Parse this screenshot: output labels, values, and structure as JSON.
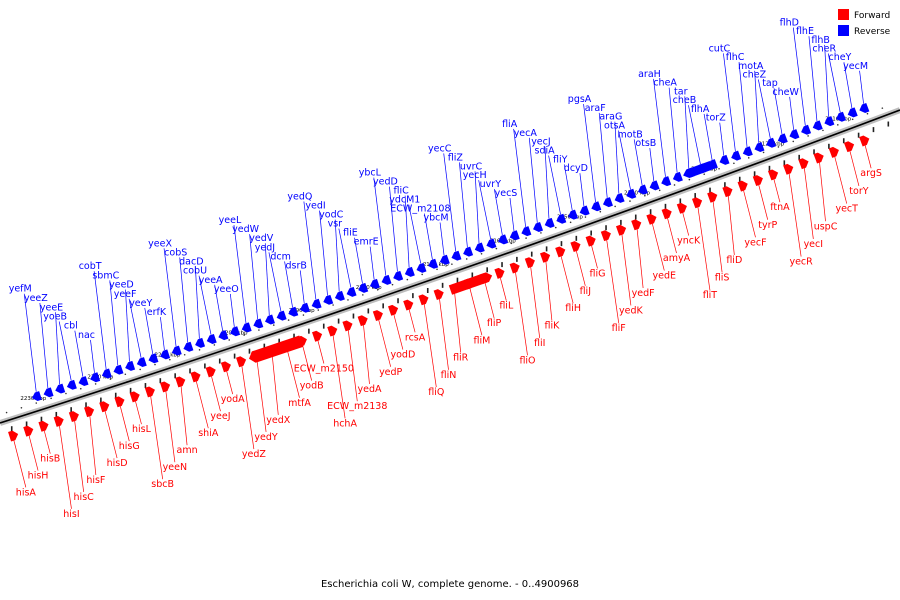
{
  "caption": "Escherichia coli W, complete genome. - 0..4900968",
  "legend": [
    {
      "label": "Forward",
      "color": "#ff0000"
    },
    {
      "label": "Reverse",
      "color": "#0000ff"
    }
  ],
  "colors": {
    "forward": "#ff0000",
    "reverse": "#0000ff",
    "backbone": "#000000"
  },
  "ticks": [
    "2110 kbp",
    "2120 kbp",
    "2130 kbp",
    "2140 kbp",
    "2150 kbp",
    "2160 kbp",
    "2170 kbp",
    "2180 kbp",
    "2190 kbp",
    "2200 kbp",
    "2210 kbp",
    "2220 kbp",
    "2230 kbp"
  ],
  "reverse_genes": [
    "yecM",
    "cheY",
    "cheR",
    "flhB",
    "flhE",
    "flhD",
    "cheW",
    "tap",
    "cheZ",
    "motA",
    "flhC",
    "cutC",
    "torZ",
    "flhA",
    "cheB",
    "tar",
    "cheA",
    "araH",
    "otsB",
    "motB",
    "otsA",
    "araG",
    "araF",
    "pgsA",
    "dcyD",
    "fliY",
    "sdiA",
    "yecJ",
    "yecA",
    "fliA",
    "yecS",
    "uvrY",
    "yecH",
    "uvrC",
    "fliZ",
    "yecC",
    "ybcM",
    "ECW_m2108",
    "ydcM1",
    "fliC",
    "yedD",
    "ybcL",
    "emrE",
    "fliE",
    "vsr",
    "yodC",
    "yedI",
    "yedQ",
    "dsrB",
    "dcm",
    "yedJ",
    "yedV",
    "yedW",
    "yeeL",
    "yeeO",
    "yeeA",
    "cobU",
    "dacD",
    "cobS",
    "yeeX",
    "erfK",
    "yeeY",
    "yeeF",
    "yeeD",
    "sbmC",
    "cobT",
    "nac",
    "cbl",
    "yoeB",
    "yeeE",
    "yeeZ",
    "yefM"
  ],
  "forward_genes": [
    "argS",
    "torY",
    "yecT",
    "uspC",
    "yecI",
    "yecR",
    "ftnA",
    "tyrP",
    "yecF",
    "fliD",
    "fliS",
    "fliT",
    "yncK",
    "amyA",
    "yedE",
    "yedF",
    "yedK",
    "fliF",
    "fliG",
    "fliJ",
    "fliH",
    "fliK",
    "fliI",
    "fliO",
    "fliL",
    "fliP",
    "fliM",
    "fliR",
    "fliN",
    "fliQ",
    "rcsA",
    "yodD",
    "yedP",
    "yedA",
    "ECW_m2138",
    "hchA",
    "ECW_m2150",
    "yodB",
    "mtfA",
    "yedX",
    "yedY",
    "yedZ",
    "yodA",
    "yeeJ",
    "shiA",
    "amn",
    "yeeN",
    "sbcB",
    "hisL",
    "hisG",
    "hisD",
    "hisF",
    "hisC",
    "hisI",
    "hisB",
    "hisH",
    "hisA"
  ]
}
